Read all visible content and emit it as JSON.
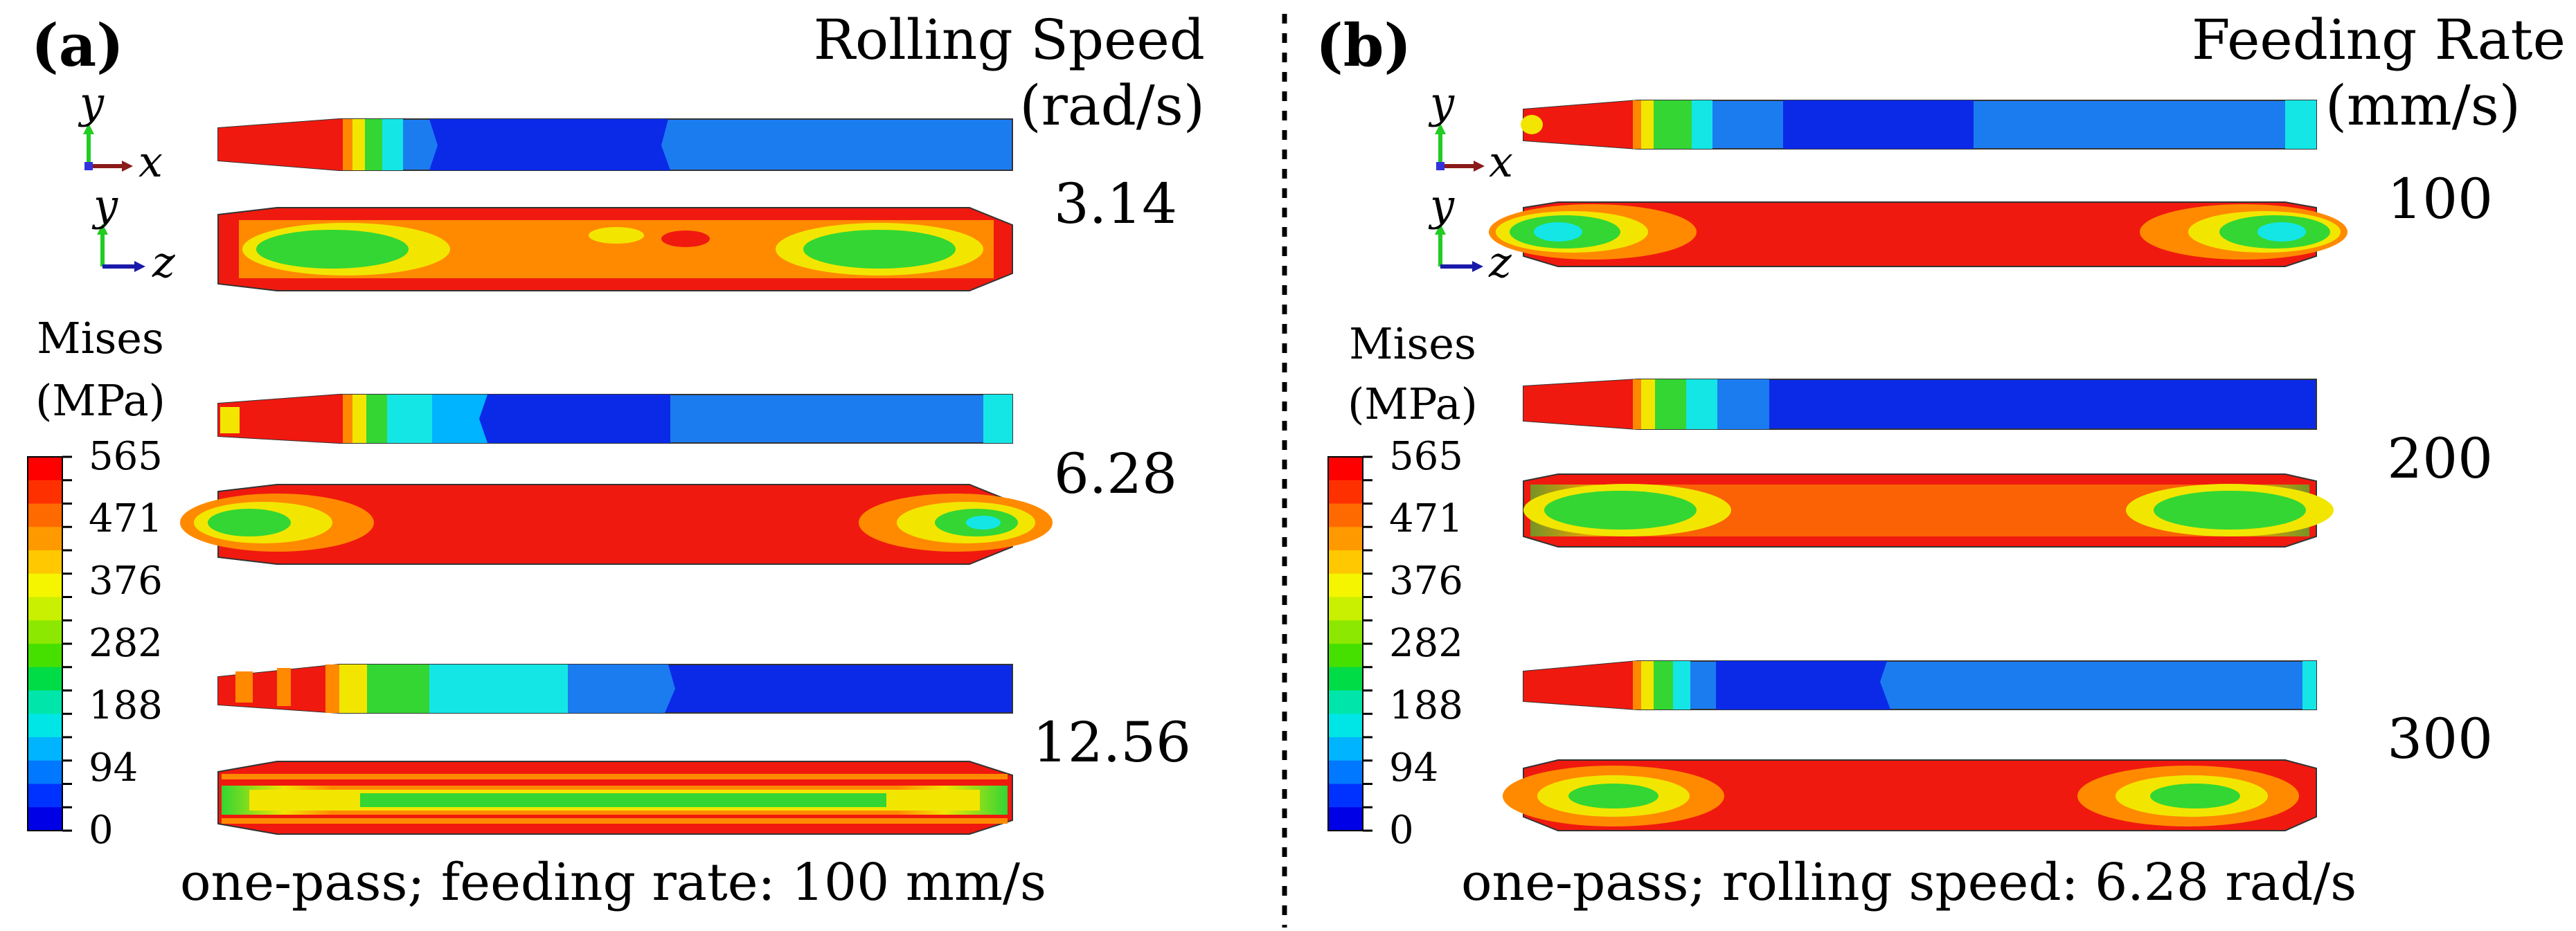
{
  "panels": [
    {
      "label": "(a)",
      "parameter_title_line1": "Rolling Speed",
      "parameter_title_line2": "(rad/s)",
      "values": [
        "3.14",
        "6.28",
        "12.56"
      ],
      "caption": "one-pass; feeding rate: 100 mm/s"
    },
    {
      "label": "(b)",
      "parameter_title_line1": "Feeding Rate",
      "parameter_title_line2": "(mm/s)",
      "values": [
        "100",
        "200",
        "300"
      ],
      "caption": "one-pass; rolling speed: 6.28 rad/s"
    }
  ],
  "axes": {
    "y": "y",
    "x": "x",
    "z": "z"
  },
  "colorbar": {
    "title_line1": "Mises",
    "title_line2": "(MPa)",
    "ticks": [
      "565",
      "471",
      "376",
      "282",
      "188",
      "94",
      "0"
    ],
    "colors": [
      "#ff0000",
      "#ff3000",
      "#ff6a00",
      "#ff9900",
      "#ffc800",
      "#f5f500",
      "#c8f000",
      "#8ce800",
      "#46e000",
      "#00dc46",
      "#00e6aa",
      "#00e6e6",
      "#00b4ff",
      "#0078ff",
      "#0032ff",
      "#0000e6"
    ]
  },
  "field_colors": {
    "red": "#f0190f",
    "orange": "#ff8a00",
    "yellow": "#f2e600",
    "green": "#33d633",
    "cyan": "#14e6e6",
    "light_blue": "#1b7cf0",
    "blue": "#0a2ae8"
  }
}
